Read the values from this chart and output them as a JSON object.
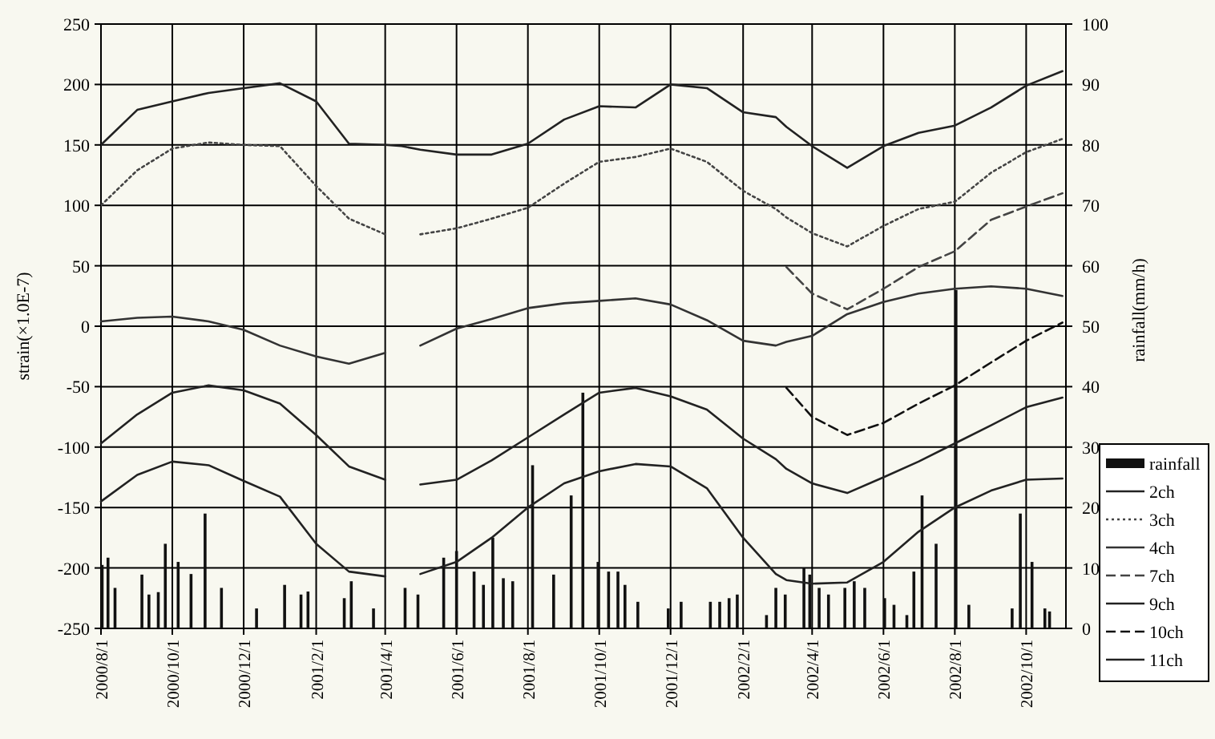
{
  "chart_data": {
    "type": "line",
    "ylabel": "strain(×1.0E-7)",
    "y2label": "rainfall(mm/h)",
    "x": [
      "2000-08-01",
      "2000-09-01",
      "2000-10-01",
      "2000-11-01",
      "2000-12-01",
      "2001-01-01",
      "2001-02-01",
      "2001-03-01",
      "2001-04-01",
      "2001-04-15",
      "2001-05-01",
      "2001-06-01",
      "2001-07-01",
      "2001-08-01",
      "2001-09-01",
      "2001-10-01",
      "2001-11-01",
      "2001-12-01",
      "2002-01-01",
      "2002-02-01",
      "2002-03-01",
      "2002-03-10",
      "2002-04-01",
      "2002-05-01",
      "2002-06-01",
      "2002-07-01",
      "2002-08-01",
      "2002-09-01",
      "2002-10-01",
      "2002-11-01"
    ],
    "series": [
      {
        "name": "rainfall",
        "type": "bar",
        "axis": "y2",
        "color": "#111111",
        "x": [
          "2000-08-02",
          "2000-08-07",
          "2000-08-13",
          "2000-09-05",
          "2000-09-11",
          "2000-09-19",
          "2000-09-25",
          "2000-10-06",
          "2000-10-17",
          "2000-10-29",
          "2000-11-12",
          "2000-12-12",
          "2001-01-05",
          "2001-01-19",
          "2001-01-25",
          "2001-02-25",
          "2001-03-03",
          "2001-03-22",
          "2001-04-18",
          "2001-04-29",
          "2001-05-21",
          "2001-06-01",
          "2001-06-16",
          "2001-06-24",
          "2001-07-02",
          "2001-07-11",
          "2001-07-19",
          "2001-08-05",
          "2001-08-23",
          "2001-09-07",
          "2001-09-17",
          "2001-09-30",
          "2001-10-09",
          "2001-10-17",
          "2001-10-23",
          "2001-11-03",
          "2001-11-29",
          "2001-12-10",
          "2002-01-04",
          "2002-01-12",
          "2002-01-20",
          "2002-01-27",
          "2002-02-21",
          "2002-03-01",
          "2002-03-09",
          "2002-03-25",
          "2002-03-30",
          "2002-04-07",
          "2002-04-15",
          "2002-04-29",
          "2002-05-07",
          "2002-05-16",
          "2002-06-02",
          "2002-06-10",
          "2002-06-21",
          "2002-06-27",
          "2002-07-04",
          "2002-07-16",
          "2002-08-02",
          "2002-08-13",
          "2002-09-19",
          "2002-09-26",
          "2002-10-06",
          "2002-10-17",
          "2002-10-21"
        ],
        "values": [
          10.5,
          11.7,
          6.7,
          8.9,
          5.6,
          6,
          14,
          11,
          9,
          19,
          6.7,
          3.3,
          7.2,
          5.6,
          6.1,
          5,
          7.8,
          3.3,
          6.7,
          5.6,
          11.7,
          12.8,
          9.4,
          7.2,
          15,
          8.3,
          7.8,
          27,
          8.9,
          22,
          39,
          11,
          9.4,
          9.4,
          7.2,
          4.4,
          3.3,
          4.4,
          4.4,
          4.4,
          5,
          5.6,
          2.2,
          6.7,
          5.6,
          10,
          8.9,
          6.7,
          5.6,
          6.7,
          7.8,
          6.7,
          5,
          3.9,
          2.2,
          9.4,
          22,
          14,
          56,
          3.9,
          3.3,
          19,
          11,
          3.3,
          2.8
        ]
      },
      {
        "name": "2ch",
        "color": "#222222",
        "values": [
          150,
          179,
          186,
          193,
          197,
          201,
          186,
          151,
          150,
          149,
          146,
          142,
          142,
          151,
          171,
          182,
          181,
          200,
          197,
          177,
          173,
          165,
          149,
          131,
          149,
          160,
          166,
          181,
          199,
          211
        ]
      },
      {
        "name": "3ch",
        "color": "#444444",
        "line_style": "dotted",
        "values": [
          100,
          129,
          147,
          152,
          150,
          149,
          116,
          89,
          76,
          null,
          76,
          81,
          89,
          98,
          118,
          136,
          140,
          147,
          136,
          112,
          97,
          90,
          77,
          66,
          83,
          97,
          103,
          127,
          144,
          155
        ]
      },
      {
        "name": "4ch",
        "color": "#333333",
        "values": [
          4,
          7,
          8,
          4,
          -3,
          -16,
          -25,
          -31,
          -22,
          null,
          -16,
          -2,
          6,
          15,
          19,
          21,
          23,
          18,
          5,
          -12,
          -16,
          -13,
          -8,
          10,
          20,
          27,
          31,
          33,
          31,
          25
        ]
      },
      {
        "name": "7ch",
        "color": "#444444",
        "line_style": "dashed",
        "values": [
          null,
          null,
          null,
          null,
          null,
          null,
          null,
          null,
          null,
          null,
          null,
          null,
          null,
          null,
          null,
          null,
          null,
          null,
          null,
          null,
          null,
          49,
          27,
          14,
          31,
          49,
          62,
          88,
          99,
          110
        ]
      },
      {
        "name": "9ch",
        "color": "#222222",
        "values": [
          -97,
          -73,
          -55,
          -49,
          -53,
          -64,
          -90,
          -116,
          -127,
          null,
          -131,
          -127,
          -111,
          -92,
          -73,
          -55,
          -51,
          -58,
          -69,
          -93,
          -110,
          -118,
          -130,
          -138,
          -125,
          -112,
          -97,
          -82,
          -67,
          -59
        ]
      },
      {
        "name": "10ch",
        "color": "#111111",
        "line_style": "dashed",
        "values": [
          null,
          null,
          null,
          null,
          null,
          null,
          null,
          null,
          null,
          null,
          null,
          null,
          null,
          null,
          null,
          null,
          null,
          null,
          null,
          null,
          null,
          -51,
          -75,
          -90,
          -80,
          -64,
          -49,
          -30,
          -12,
          3
        ]
      },
      {
        "name": "11ch",
        "color": "#222222",
        "values": [
          -145,
          -123,
          -112,
          -115,
          -128,
          -141,
          -180,
          -203,
          -207,
          null,
          -205,
          -195,
          -175,
          -150,
          -130,
          -120,
          -114,
          -116,
          -134,
          -175,
          -205,
          -210,
          -213,
          -212,
          -195,
          -170,
          -150,
          -136,
          -127,
          -126
        ]
      }
    ],
    "xlim": [
      "2000-08-01",
      "2002-11-04"
    ],
    "xticks": [
      {
        "value": "2000-08-01",
        "label": "2000/8/1"
      },
      {
        "value": "2000-10-01",
        "label": "2000/10/1"
      },
      {
        "value": "2000-12-01",
        "label": "2000/12/1"
      },
      {
        "value": "2001-02-01",
        "label": "2001/2/1"
      },
      {
        "value": "2001-04-01",
        "label": "2001/4/1"
      },
      {
        "value": "2001-06-01",
        "label": "2001/6/1"
      },
      {
        "value": "2001-08-01",
        "label": "2001/8/1"
      },
      {
        "value": "2001-10-01",
        "label": "2001/10/1"
      },
      {
        "value": "2001-12-01",
        "label": "2001/12/1"
      },
      {
        "value": "2002-02-01",
        "label": "2002/2/1"
      },
      {
        "value": "2002-04-01",
        "label": "2002/4/1"
      },
      {
        "value": "2002-06-01",
        "label": "2002/6/1"
      },
      {
        "value": "2002-08-01",
        "label": "2002/8/1"
      },
      {
        "value": "2002-10-01",
        "label": "2002/10/1"
      }
    ],
    "ylim": [
      -250,
      250
    ],
    "yticks": [
      -250,
      -200,
      -150,
      -100,
      -50,
      0,
      50,
      100,
      150,
      200,
      250
    ],
    "y2lim": [
      0,
      100
    ],
    "y2ticks": [
      0,
      10,
      20,
      30,
      40,
      50,
      60,
      70,
      80,
      90,
      100
    ],
    "grid": true,
    "legend": "bottom right",
    "marker": "none"
  }
}
